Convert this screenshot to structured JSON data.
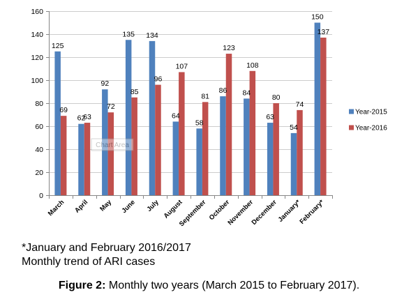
{
  "chart_data": {
    "type": "bar",
    "categories": [
      "March",
      "April",
      "May",
      "June",
      "July",
      "August",
      "September",
      "October",
      "November",
      "December",
      "January*",
      "February*"
    ],
    "series": [
      {
        "name": "Year-2015",
        "color": "#4F81BD",
        "values": [
          125,
          62,
          92,
          135,
          134,
          64,
          58,
          86,
          84,
          63,
          54,
          150
        ]
      },
      {
        "name": "Year-2016",
        "color": "#C0504D",
        "values": [
          69,
          63,
          72,
          85,
          96,
          107,
          81,
          123,
          108,
          80,
          74,
          137
        ]
      }
    ],
    "ylim": [
      0,
      160
    ],
    "yticks": [
      0,
      20,
      40,
      60,
      80,
      100,
      120,
      140,
      160
    ],
    "grid": true,
    "legend": "right",
    "data_labels": true
  },
  "notes": {
    "asterisk_note": "*January and February 2016/2017",
    "description": "Monthly trend of ARI cases"
  },
  "caption": {
    "label": "Figure 2:",
    "text": "Monthly two years (March 2015 to February 2017)."
  },
  "tooltip": {
    "text": "Chart Area"
  }
}
